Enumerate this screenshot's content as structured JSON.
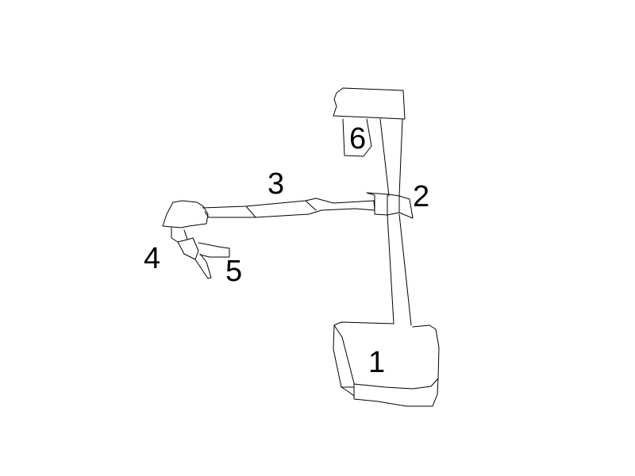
{
  "diagram": {
    "colors": {
      "background": "#ffffff",
      "stroke": "#000000",
      "label": "#000000"
    },
    "callouts": [
      {
        "id": "part-1",
        "text": "1"
      },
      {
        "id": "part-2",
        "text": "2"
      },
      {
        "id": "part-3",
        "text": "3"
      },
      {
        "id": "part-4",
        "text": "4"
      },
      {
        "id": "part-5",
        "text": "5"
      },
      {
        "id": "part-6",
        "text": "6"
      }
    ]
  }
}
